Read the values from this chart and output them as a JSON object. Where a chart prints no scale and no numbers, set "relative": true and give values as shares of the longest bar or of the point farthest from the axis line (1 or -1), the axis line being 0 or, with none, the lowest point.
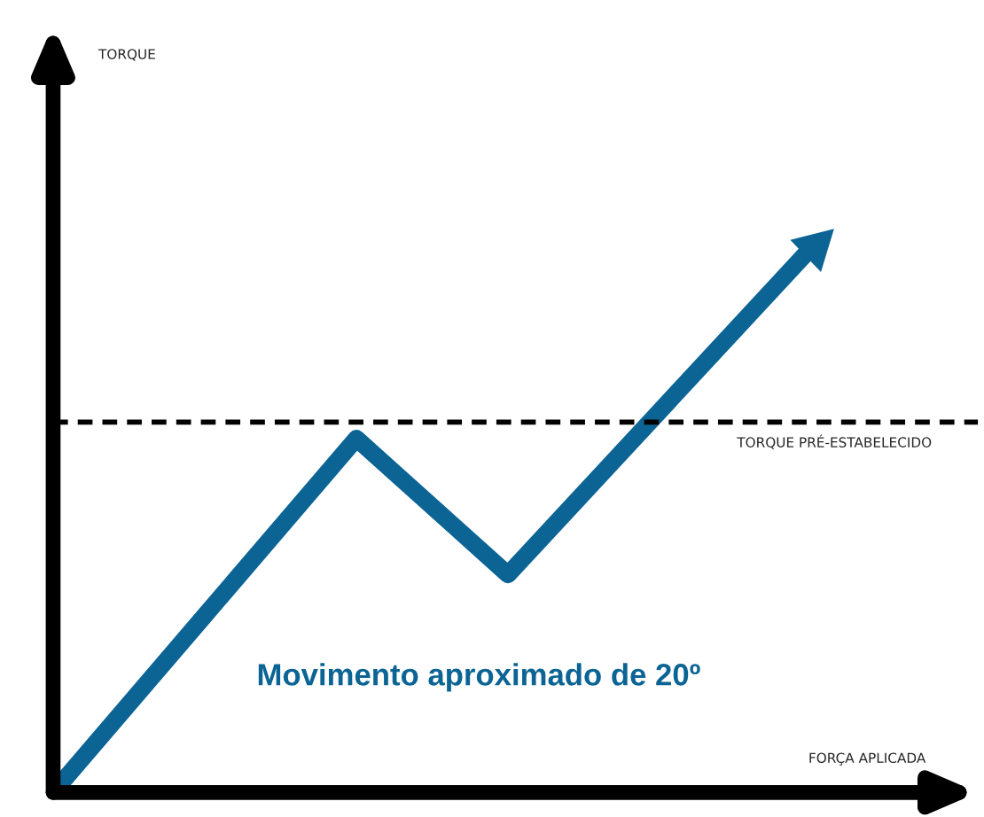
{
  "chart_data": {
    "type": "line",
    "relative": true,
    "xlabel": "FORÇA APLICADA",
    "categories": [
      null,
      null,
      null,
      null,
      null,
      null
    ],
    "series": [
      {
        "color": "#0b6494",
        "values": [
          0,
          0.325,
          0.65,
          0.4,
          0.7,
          1.0
        ]
      }
    ],
    "ref_lines": [
      {
        "axis": "y",
        "value": 0.68,
        "label": "TORQUE PRÉ-ESTABELECIDO",
        "color": "#000000",
        "line_style": "dashed"
      }
    ],
    "annotations": [
      "Movimento aproximado de 20º",
      "TORQUE"
    ],
    "legend": false
  }
}
